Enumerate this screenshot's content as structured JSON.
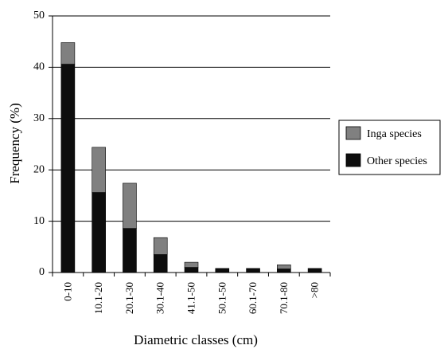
{
  "chart_data": {
    "type": "bar",
    "stacked": true,
    "categories": [
      "0-10",
      "10.1-20",
      "20.1-30",
      "30.1-40",
      "41.1-50",
      "50.1-50",
      "60.1-70",
      "70.1-80",
      ">80"
    ],
    "series": [
      {
        "name": "Other species",
        "values": [
          40.6,
          15.6,
          8.6,
          3.5,
          1.0,
          0.8,
          0.8,
          0.7,
          0.8
        ],
        "color": "#0d0d0d"
      },
      {
        "name": "Inga species",
        "values": [
          4.2,
          8.8,
          8.8,
          3.3,
          1.0,
          0.0,
          0.0,
          0.8,
          0.0
        ],
        "color": "#808080"
      }
    ],
    "xlabel": "Diametric classes (cm)",
    "ylabel": "Frequency (%)",
    "ylim": [
      0,
      50
    ],
    "yticks": [
      0,
      10,
      20,
      30,
      40,
      50
    ],
    "grid": "horizontal",
    "legend": {
      "position": "right",
      "entries": [
        {
          "label": "Inga species",
          "color": "#808080"
        },
        {
          "label": "Other species",
          "color": "#0d0d0d"
        }
      ]
    }
  }
}
